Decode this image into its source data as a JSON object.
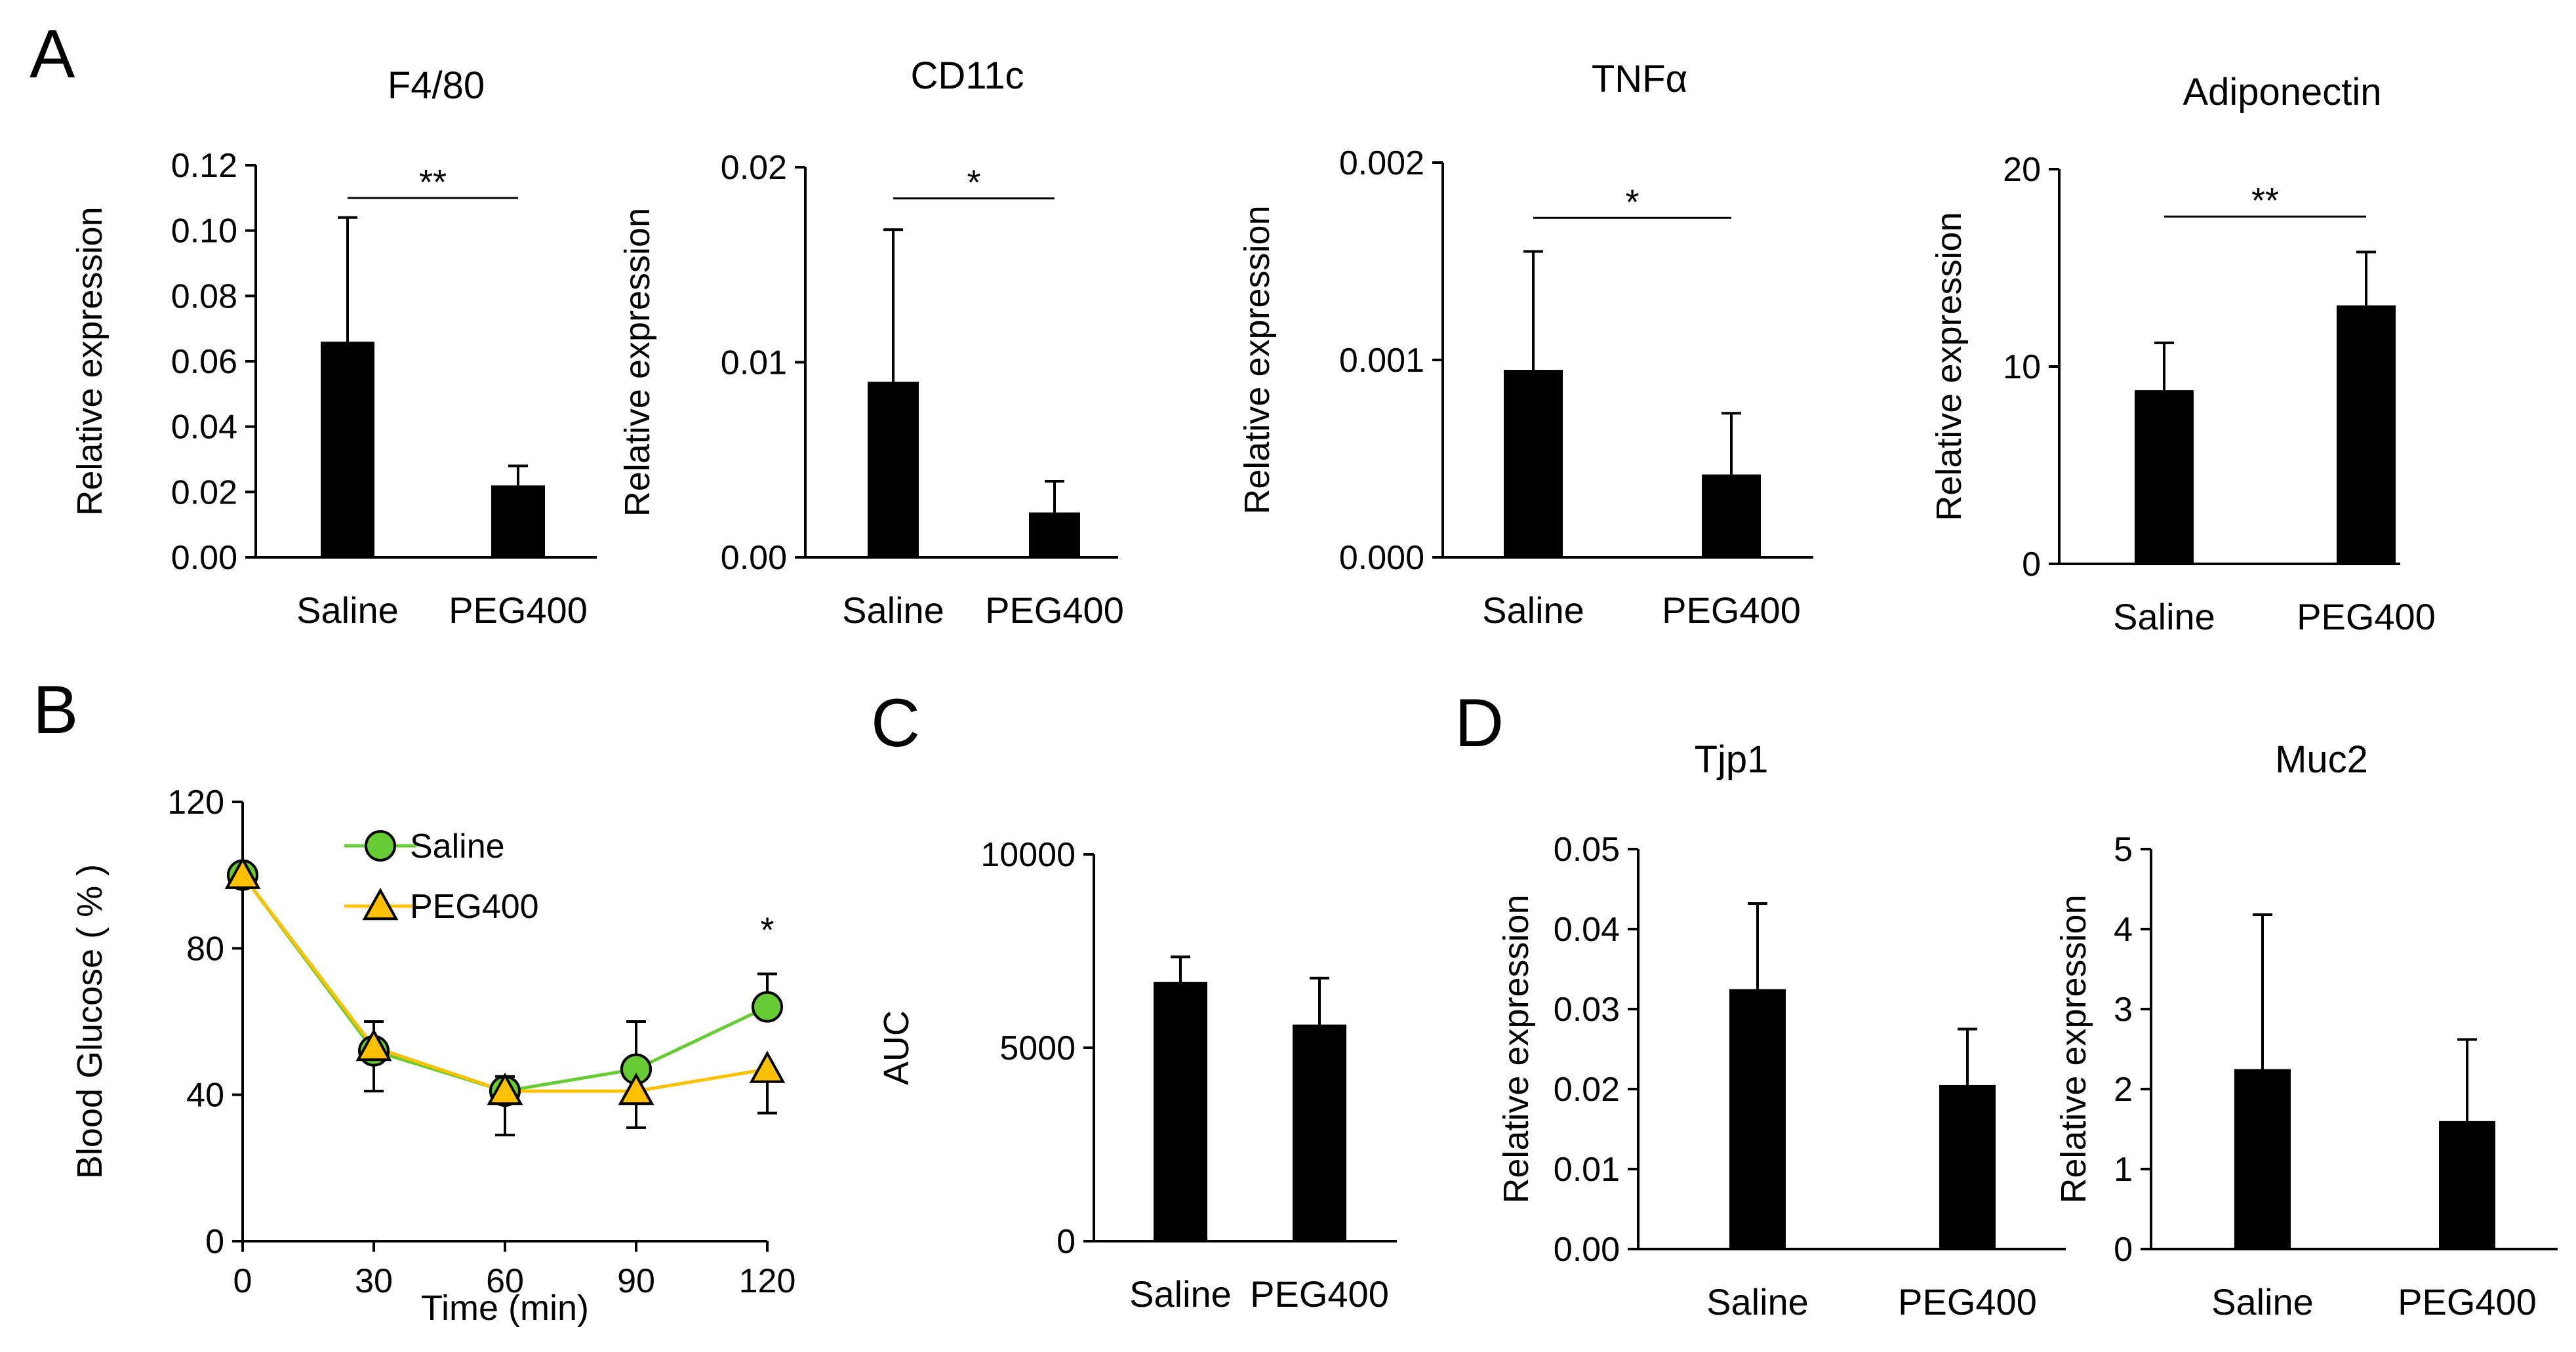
{
  "panels": {
    "A": "A",
    "B": "B",
    "C": "C",
    "D": "D"
  },
  "colors": {
    "bar": "#000000",
    "saline_line": "#66cc33",
    "saline_marker": "#66cc33",
    "peg_line": "#ffc000",
    "peg_marker": "#ffc000"
  },
  "chart_data": [
    {
      "id": "f480",
      "panel": "A",
      "type": "bar",
      "title": "F4/80",
      "ylabel": "Relative expression",
      "categories": [
        "Saline",
        "PEG400"
      ],
      "values": [
        0.066,
        0.022
      ],
      "errors": [
        0.038,
        0.006
      ],
      "ylim": [
        0,
        0.12
      ],
      "yticks": [
        0,
        0.02,
        0.04,
        0.06,
        0.08,
        0.1,
        0.12
      ],
      "ytick_labels": [
        "0.00",
        "0.02",
        "0.04",
        "0.06",
        "0.08",
        "0.10",
        "0.12"
      ],
      "significance": {
        "label": "**",
        "level": 0.11
      }
    },
    {
      "id": "cd11c",
      "panel": "A",
      "type": "bar",
      "title": "CD11c",
      "ylabel": "Relative expression",
      "categories": [
        "Saline",
        "PEG400"
      ],
      "values": [
        0.009,
        0.0023
      ],
      "errors": [
        0.0078,
        0.0016
      ],
      "ylim": [
        0,
        0.02
      ],
      "yticks": [
        0,
        0.01,
        0.02
      ],
      "ytick_labels": [
        "0.00",
        "0.01",
        "0.02"
      ],
      "significance": {
        "label": "*",
        "level": 0.0184
      }
    },
    {
      "id": "tnfa",
      "panel": "A",
      "type": "bar",
      "title": "TNFα",
      "ylabel": "Relative expression",
      "categories": [
        "Saline",
        "PEG400"
      ],
      "values": [
        0.00095,
        0.00042
      ],
      "errors": [
        0.0006,
        0.00031
      ],
      "ylim": [
        0,
        0.002
      ],
      "yticks": [
        0,
        0.001,
        0.002
      ],
      "ytick_labels": [
        "0.000",
        "0.001",
        "0.002"
      ],
      "significance": {
        "label": "*",
        "level": 0.00172
      }
    },
    {
      "id": "adiponectin",
      "panel": "A",
      "type": "bar",
      "title": "Adiponectin",
      "ylabel": "Relative expression",
      "categories": [
        "Saline",
        "PEG400"
      ],
      "values": [
        8.8,
        13.1
      ],
      "errors": [
        2.4,
        2.7
      ],
      "ylim": [
        0,
        20
      ],
      "yticks": [
        0,
        10,
        20
      ],
      "ytick_labels": [
        "0",
        "10",
        "20"
      ],
      "significance": {
        "label": "**",
        "level": 17.6
      }
    },
    {
      "id": "itt",
      "panel": "B",
      "type": "line",
      "title": "",
      "xlabel": "Time (min)",
      "ylabel": "Blood Glucose ( % )",
      "x": [
        0,
        30,
        60,
        90,
        120
      ],
      "xlim": [
        0,
        120
      ],
      "ylim": [
        0,
        120
      ],
      "xticks": [
        0,
        30,
        60,
        90,
        120
      ],
      "xtick_labels": [
        "0",
        "30",
        "60",
        "90",
        "120"
      ],
      "yticks": [
        0,
        40,
        80,
        120
      ],
      "ytick_labels": [
        "0",
        "40",
        "80",
        "120"
      ],
      "series": [
        {
          "name": "Saline",
          "marker": "circle",
          "values": [
            100,
            52,
            41,
            47,
            64
          ],
          "errors": [
            0,
            8,
            4,
            13,
            9
          ]
        },
        {
          "name": "PEG400",
          "marker": "triangle",
          "values": [
            100,
            53,
            41,
            41,
            47
          ],
          "errors": [
            0,
            12,
            12,
            10,
            12
          ]
        }
      ],
      "legend": "top-left",
      "annotations": [
        {
          "text": "*",
          "x": 120,
          "y": 85
        }
      ]
    },
    {
      "id": "auc",
      "panel": "C",
      "type": "bar",
      "title": "",
      "ylabel": "AUC",
      "categories": [
        "Saline",
        "PEG400"
      ],
      "values": [
        6700,
        5600
      ],
      "errors": [
        650,
        1200
      ],
      "ylim": [
        0,
        10000
      ],
      "yticks": [
        0,
        5000,
        10000
      ],
      "ytick_labels": [
        "0",
        "5000",
        "10000"
      ]
    },
    {
      "id": "tjp1",
      "panel": "D",
      "type": "bar",
      "title": "Tjp1",
      "ylabel": "Relative expression",
      "categories": [
        "Saline",
        "PEG400"
      ],
      "values": [
        0.0325,
        0.0205
      ],
      "errors": [
        0.0107,
        0.007
      ],
      "ylim": [
        0,
        0.05
      ],
      "yticks": [
        0,
        0.01,
        0.02,
        0.03,
        0.04,
        0.05
      ],
      "ytick_labels": [
        "0.00",
        "0.01",
        "0.02",
        "0.03",
        "0.04",
        "0.05"
      ]
    },
    {
      "id": "muc2",
      "panel": "D",
      "type": "bar",
      "title": "Muc2",
      "ylabel": "Relative expression",
      "categories": [
        "Saline",
        "PEG400"
      ],
      "values": [
        2.25,
        1.6
      ],
      "errors": [
        1.93,
        1.02
      ],
      "ylim": [
        0,
        5
      ],
      "yticks": [
        0,
        1,
        2,
        3,
        4,
        5
      ],
      "ytick_labels": [
        "0",
        "1",
        "2",
        "3",
        "4",
        "5"
      ]
    }
  ]
}
